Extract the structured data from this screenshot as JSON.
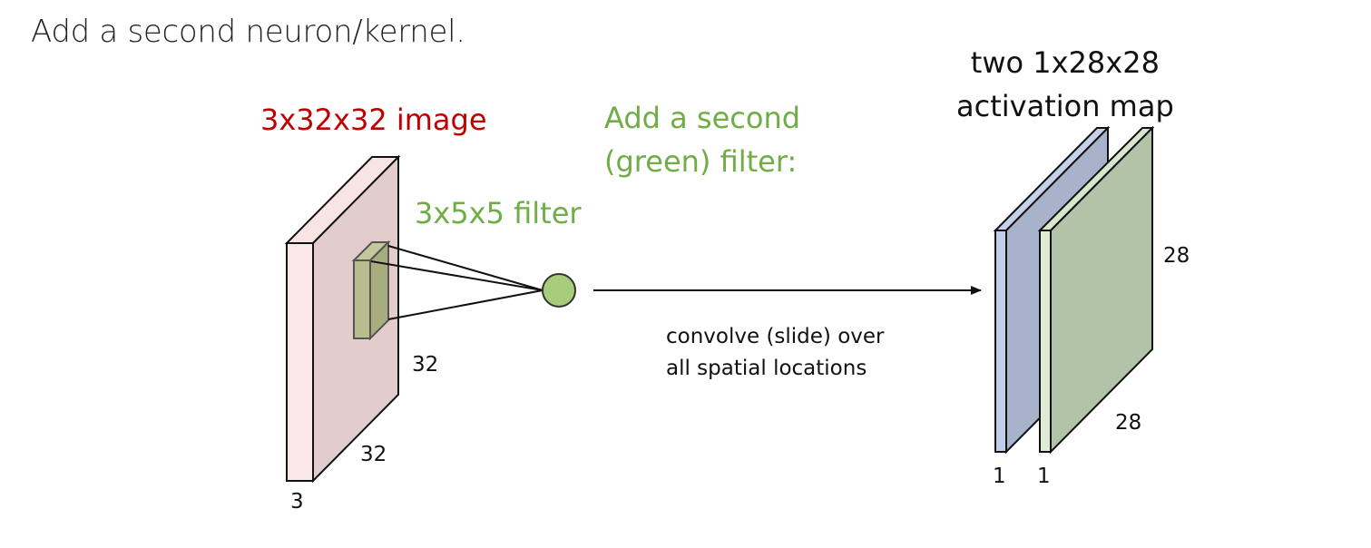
{
  "slide": {
    "title": "Add a second neuron/kernel."
  },
  "input_volume": {
    "label": "3x32x32 image",
    "width_dim": "32",
    "height_dim": "32",
    "depth_dim": "3",
    "color": "#f7dede"
  },
  "filter": {
    "label": "3x5x5 filter",
    "color": "#b5bd8e"
  },
  "second_filter_note": {
    "line1": "Add a second",
    "line2": "(green) filter:"
  },
  "neuron": {
    "color": "#a6cd7a"
  },
  "operation": {
    "line1": "convolve (slide) over",
    "line2": "all spatial locations"
  },
  "output": {
    "label_line1": "two 1x28x28",
    "label_line2": "activation map",
    "height_dim": "28",
    "width_dim": "28",
    "map1_depth": "1",
    "map2_depth": "1",
    "map1_color": "#a8b3cc",
    "map2_color": "#b3c3a8"
  },
  "colors": {
    "image_label": "#c00000",
    "green_label": "#70ad47",
    "stroke": "#222222"
  }
}
